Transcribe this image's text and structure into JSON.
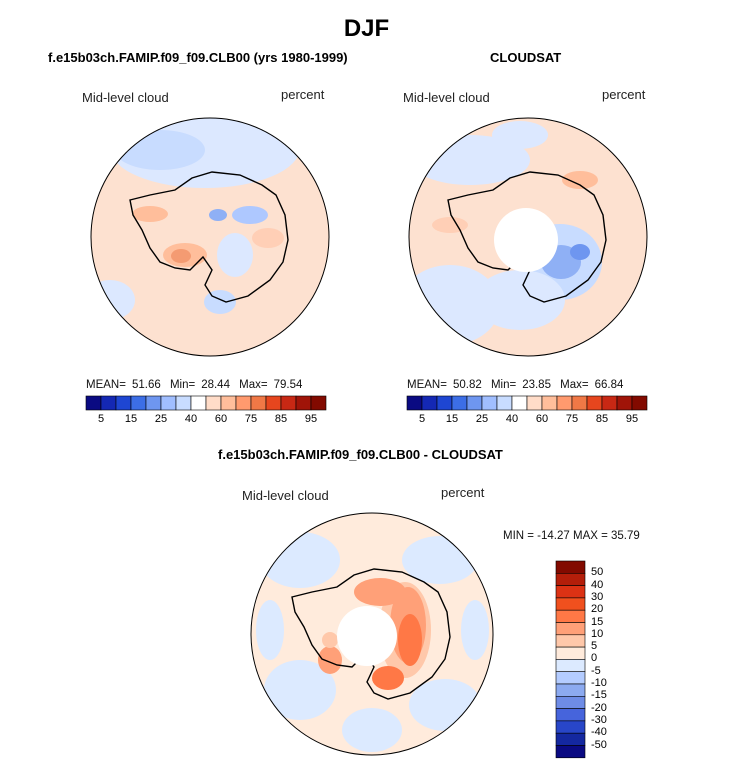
{
  "figure": {
    "season_title": "DJF",
    "variable": "Mid-level cloud",
    "units": "percent"
  },
  "panels": {
    "model": {
      "title": "f.e15b03ch.FAMIP.f09_f09.CLB00 (yrs 1980-1999)",
      "variable": "Mid-level cloud",
      "units": "percent",
      "stats": {
        "mean_label": "MEAN=",
        "mean": "51.66",
        "min_label": "Min=",
        "min": "28.44",
        "max_label": "Max=",
        "max": "79.54"
      }
    },
    "obs": {
      "title": "CLOUDSAT",
      "variable": "Mid-level cloud",
      "units": "percent",
      "stats": {
        "mean_label": "MEAN=",
        "mean": "50.82",
        "min_label": "Min=",
        "min": "23.85",
        "max_label": "Max=",
        "max": "66.84"
      }
    },
    "diff": {
      "title": "f.e15b03ch.FAMIP.f09_f09.CLB00 - CLOUDSAT",
      "variable": "Mid-level cloud",
      "units": "percent",
      "minmax": "MIN = -14.27 MAX =  35.79"
    }
  },
  "colorbar_main": {
    "levels": [
      "5",
      "15",
      "25",
      "40",
      "60",
      "75",
      "85",
      "95"
    ],
    "colors": [
      "#0a0a82",
      "#1428b4",
      "#1e46d2",
      "#3c6ee6",
      "#6e96f0",
      "#a0beff",
      "#c8dcff",
      "#ffffff",
      "#ffdcc8",
      "#ffbe9b",
      "#ff9a6e",
      "#f07846",
      "#e6461e",
      "#c82814",
      "#a01408",
      "#820a00"
    ]
  },
  "colorbar_diff": {
    "levels": [
      "50",
      "40",
      "30",
      "20",
      "15",
      "10",
      "5",
      "0",
      "-5",
      "-10",
      "-15",
      "-20",
      "-30",
      "-40",
      "-50"
    ],
    "colors": [
      "#820a00",
      "#b41e0a",
      "#dc3214",
      "#f0501e",
      "#ff7846",
      "#ffa078",
      "#ffc8aa",
      "#ffebdc",
      "#dceaff",
      "#b4ccff",
      "#8caaf0",
      "#6e8ce6",
      "#4664dc",
      "#2846c8",
      "#1428a0",
      "#0a0a82"
    ]
  },
  "chart_data": [
    {
      "type": "heatmap",
      "title": "f.e15b03ch.FAMIP.f09_f09.CLB00 (yrs 1980-1999)",
      "subtitle": "Mid-level cloud",
      "units": "percent",
      "projection": "South polar stereographic",
      "mean": 51.66,
      "min": 28.44,
      "max": 79.54,
      "contour_levels": [
        5,
        10,
        15,
        20,
        25,
        30,
        35,
        40,
        50,
        60,
        65,
        70,
        75,
        80,
        85,
        95
      ]
    },
    {
      "type": "heatmap",
      "title": "CLOUDSAT",
      "subtitle": "Mid-level cloud",
      "units": "percent",
      "projection": "South polar stereographic",
      "mean": 50.82,
      "min": 23.85,
      "max": 66.84,
      "contour_levels": [
        5,
        10,
        15,
        20,
        25,
        30,
        35,
        40,
        50,
        60,
        65,
        70,
        75,
        80,
        85,
        95
      ]
    },
    {
      "type": "heatmap",
      "title": "f.e15b03ch.FAMIP.f09_f09.CLB00 - CLOUDSAT",
      "subtitle": "Mid-level cloud",
      "units": "percent",
      "projection": "South polar stereographic",
      "min": -14.27,
      "max": 35.79,
      "contour_levels": [
        -50,
        -40,
        -30,
        -20,
        -15,
        -10,
        -5,
        0,
        5,
        10,
        15,
        20,
        30,
        40,
        50
      ]
    }
  ]
}
